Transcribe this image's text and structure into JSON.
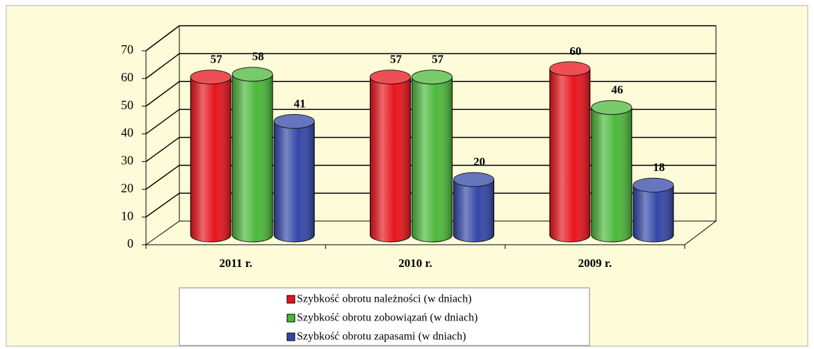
{
  "chart_data": {
    "type": "bar",
    "categories": [
      "2011 r.",
      "2010 r.",
      "2009 r."
    ],
    "series": [
      {
        "name": "Szybkość obrotu należności (w dniach)",
        "color": "#e8141c",
        "values": [
          57,
          57,
          60
        ]
      },
      {
        "name": "Szybkość obrotu zobowiązań (w dniach)",
        "color": "#4cb83a",
        "values": [
          58,
          57,
          46
        ]
      },
      {
        "name": "Szybkość obrotu zapasami (w dniach)",
        "color": "#3347a8",
        "values": [
          41,
          20,
          18
        ]
      }
    ],
    "ylim": [
      0,
      70
    ],
    "yticks": [
      0,
      10,
      20,
      30,
      40,
      50,
      60,
      70
    ],
    "grid": true,
    "legend": "bottom"
  }
}
